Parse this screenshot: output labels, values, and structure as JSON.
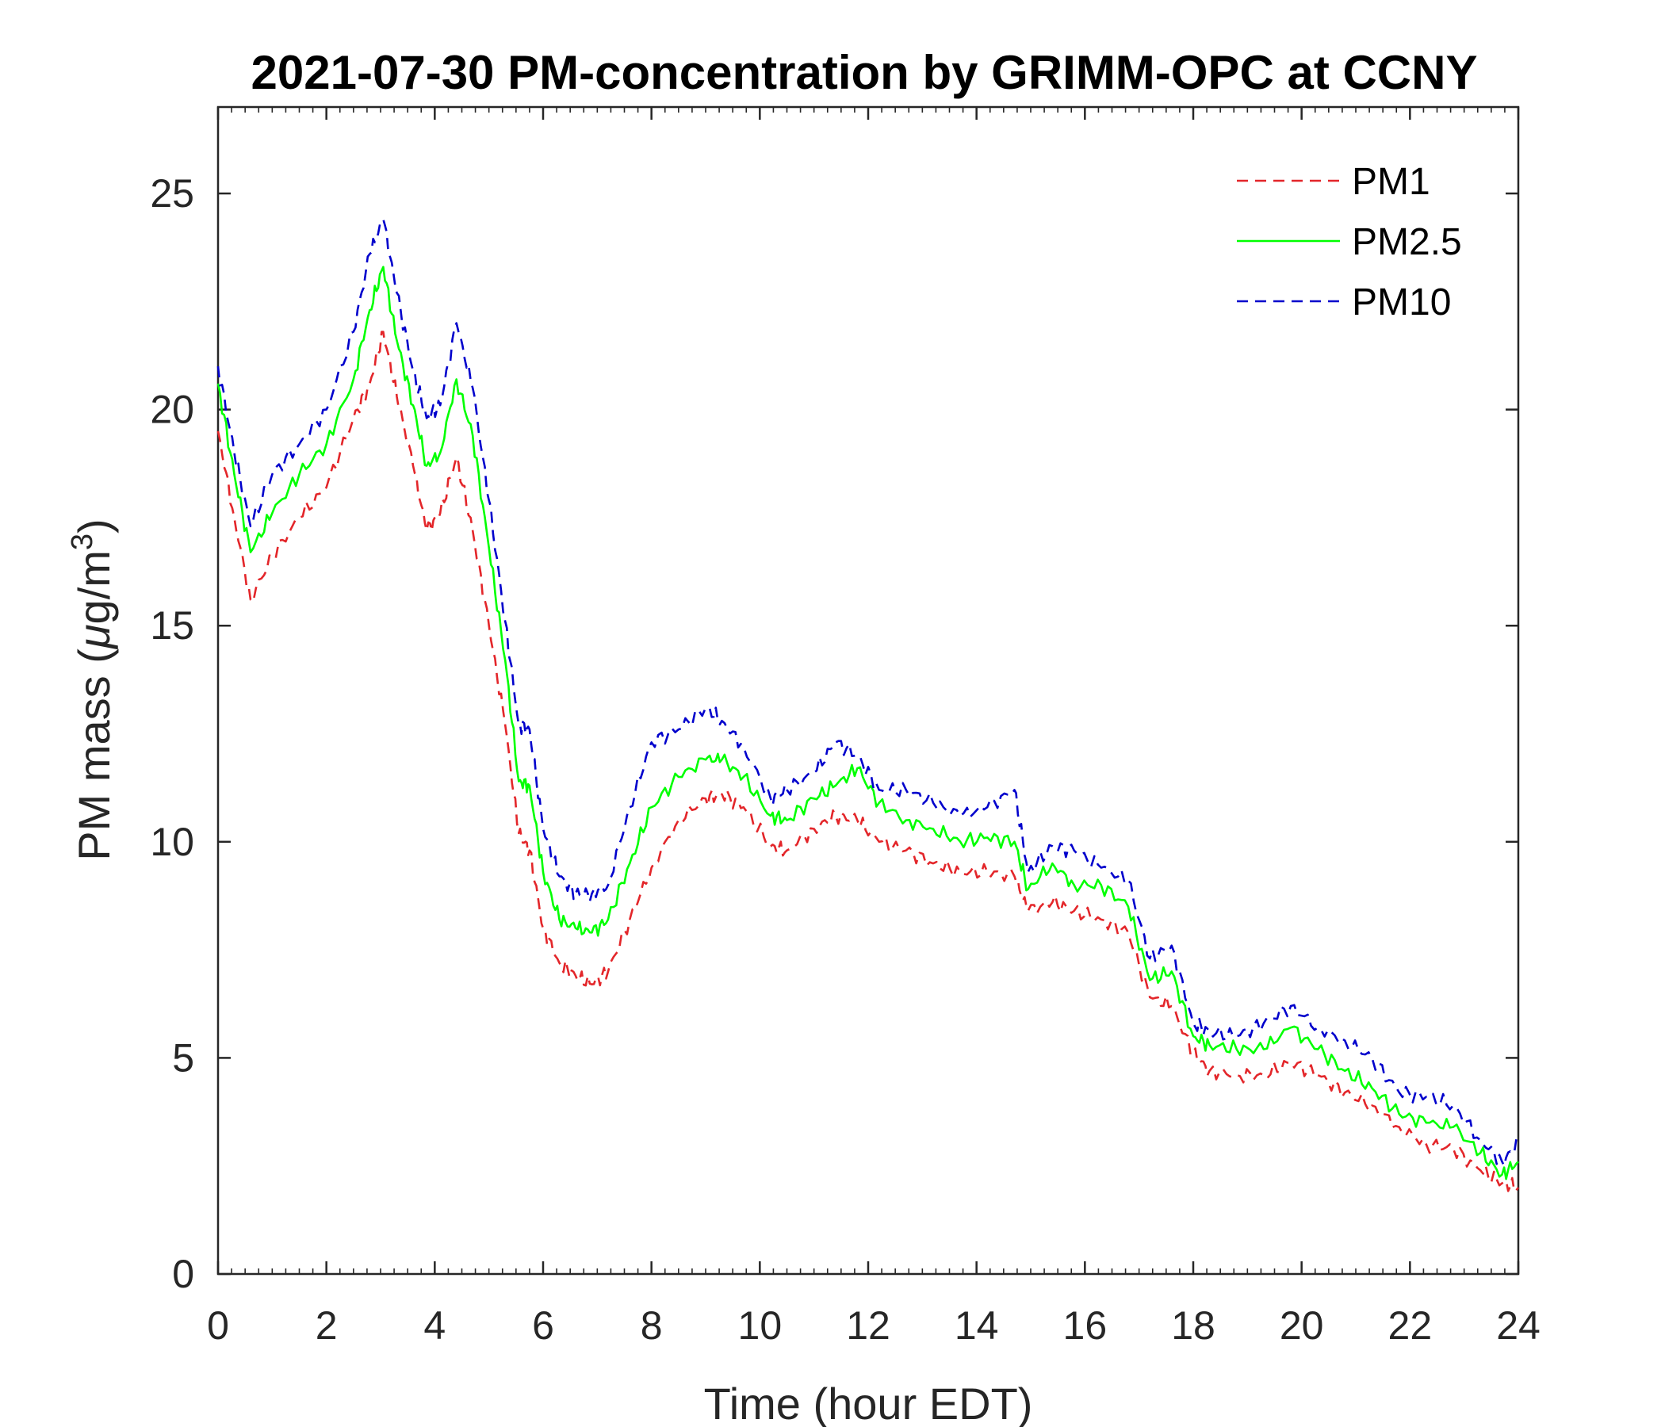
{
  "chart_data": {
    "type": "line",
    "title": "2021-07-30 PM-concentration by GRIMM-OPC at CCNY",
    "xlabel": "Time (hour EDT)",
    "ylabel_prefix": "PM mass (",
    "ylabel_mu": "μ",
    "ylabel_unit": "g/m",
    "ylabel_sup": "3",
    "ylabel_suffix": ")",
    "xlim": [
      0,
      24
    ],
    "ylim": [
      0,
      27
    ],
    "xticks": [
      "0",
      "2",
      "4",
      "6",
      "8",
      "10",
      "12",
      "14",
      "16",
      "18",
      "20",
      "22",
      "24"
    ],
    "yticks": [
      "0",
      "5",
      "10",
      "15",
      "20",
      "25"
    ],
    "legend_position": "top-right",
    "grid": false,
    "x": [
      0,
      0.3,
      0.6,
      1.0,
      1.5,
      2.0,
      2.5,
      2.8,
      3.05,
      3.3,
      3.6,
      3.85,
      4.1,
      4.4,
      4.7,
      5.0,
      5.3,
      5.55,
      5.75,
      6.0,
      6.3,
      6.6,
      6.9,
      7.2,
      7.6,
      8.0,
      8.5,
      9.0,
      9.3,
      9.7,
      10.2,
      10.5,
      11.0,
      11.4,
      11.8,
      12.2,
      12.7,
      13.2,
      13.7,
      14.2,
      14.7,
      14.95,
      15.4,
      15.8,
      16.3,
      16.8,
      17.2,
      17.6,
      18.0,
      18.3,
      18.8,
      19.3,
      19.8,
      20.3,
      20.8,
      21.3,
      21.8,
      22.3,
      22.8,
      23.3,
      23.7,
      24.0
    ],
    "series": [
      {
        "name": "PM1",
        "color": "#e3262a",
        "dash": "dashed",
        "values": [
          19.5,
          17.5,
          15.6,
          16.6,
          17.5,
          18.2,
          19.8,
          20.6,
          21.8,
          20.3,
          18.7,
          17.2,
          17.6,
          18.9,
          17.2,
          15.0,
          12.7,
          10.2,
          9.8,
          8.0,
          7.2,
          6.9,
          6.7,
          7.0,
          8.2,
          9.4,
          10.5,
          11.0,
          11.1,
          10.8,
          9.9,
          9.8,
          10.3,
          10.6,
          10.5,
          10.0,
          9.8,
          9.5,
          9.3,
          9.3,
          9.2,
          8.4,
          8.6,
          8.4,
          8.2,
          7.9,
          6.4,
          6.2,
          5.1,
          4.7,
          4.6,
          4.6,
          4.9,
          4.6,
          4.2,
          3.9,
          3.4,
          3.0,
          2.9,
          2.4,
          2.1,
          2.0
        ]
      },
      {
        "name": "PM2.5",
        "color": "#00ff00",
        "dash": "solid",
        "values": [
          20.6,
          18.5,
          16.7,
          17.6,
          18.5,
          19.2,
          20.7,
          22.3,
          23.3,
          21.6,
          20.1,
          18.7,
          19.0,
          20.7,
          19.4,
          16.8,
          14.2,
          11.4,
          11.3,
          9.3,
          8.2,
          8.0,
          7.9,
          8.2,
          9.5,
          10.8,
          11.5,
          11.9,
          11.9,
          11.5,
          10.6,
          10.5,
          11.0,
          11.3,
          11.7,
          10.9,
          10.5,
          10.3,
          10.0,
          10.1,
          10.0,
          8.9,
          9.5,
          9.0,
          9.0,
          8.5,
          6.8,
          7.0,
          5.5,
          5.3,
          5.2,
          5.2,
          5.7,
          5.2,
          4.7,
          4.3,
          3.7,
          3.5,
          3.4,
          2.8,
          2.3,
          2.6
        ]
      },
      {
        "name": "PM10",
        "color": "#0000cc",
        "dash": "dashed",
        "values": [
          21.0,
          19.0,
          17.3,
          18.5,
          19.2,
          20.0,
          21.8,
          23.6,
          24.4,
          22.7,
          20.9,
          19.8,
          20.1,
          22.0,
          20.5,
          17.9,
          15.1,
          12.7,
          12.6,
          10.3,
          9.2,
          8.8,
          8.8,
          9.0,
          10.8,
          12.3,
          12.6,
          13.1,
          12.8,
          12.2,
          11.0,
          11.2,
          11.6,
          12.3,
          12.0,
          11.2,
          11.2,
          10.9,
          10.6,
          10.8,
          11.2,
          9.3,
          9.9,
          9.8,
          9.4,
          9.1,
          7.3,
          7.6,
          5.8,
          5.6,
          5.5,
          5.8,
          6.2,
          5.7,
          5.4,
          5.0,
          4.2,
          4.1,
          3.9,
          3.1,
          2.6,
          3.0
        ]
      }
    ]
  }
}
